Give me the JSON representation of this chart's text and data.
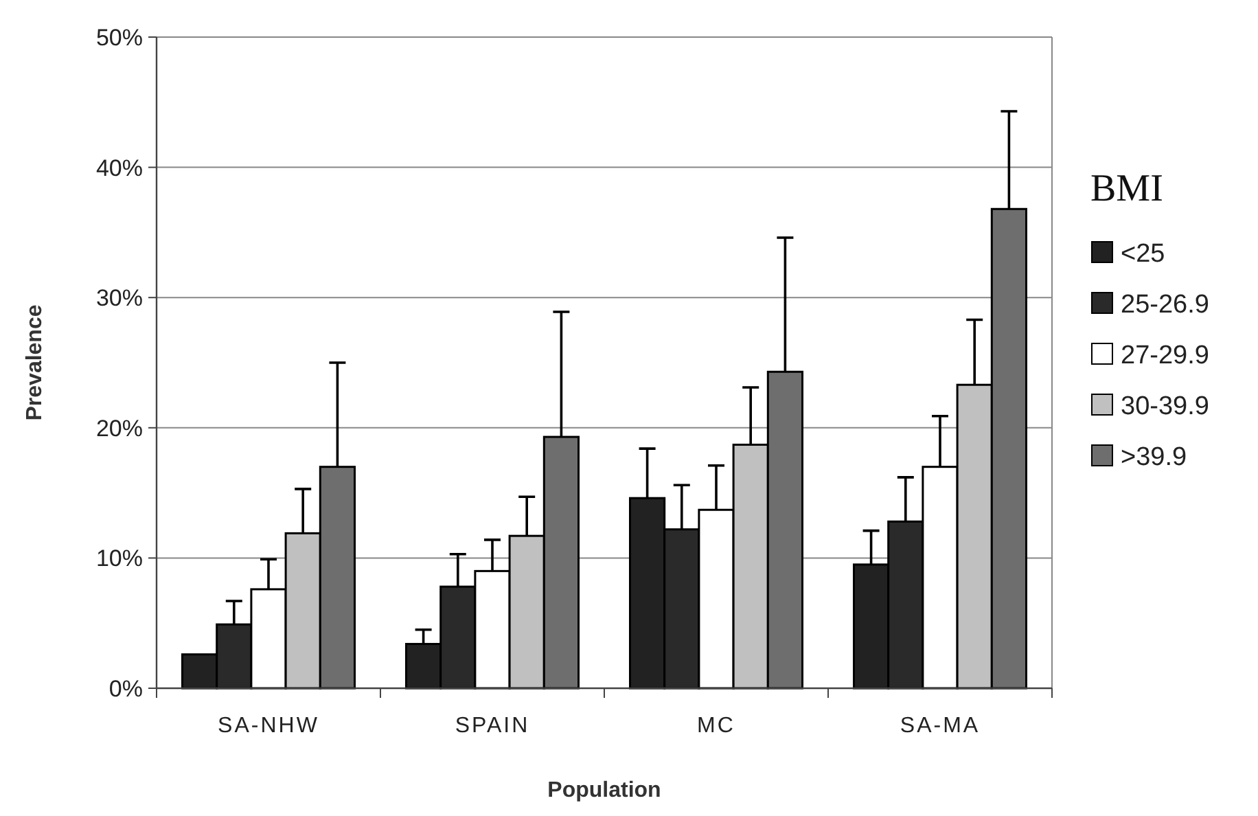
{
  "chart_data": {
    "type": "bar",
    "xlabel": "Population",
    "ylabel": "Prevalence",
    "legend_title": "BMI",
    "categories": [
      "SA-NHW",
      "SPAIN",
      "MC",
      "SA-MA"
    ],
    "series": [
      {
        "name": "<25",
        "color": "#222222",
        "values": [
          2.6,
          3.4,
          14.6,
          9.5
        ],
        "errors": [
          null,
          [
            3.4,
            4.5
          ],
          [
            14.6,
            18.4
          ],
          [
            9.5,
            12.1
          ]
        ]
      },
      {
        "name": "25-26.9",
        "color": "#2a2a2a",
        "values": [
          4.9,
          7.8,
          12.2,
          12.8
        ],
        "errors": [
          [
            4.9,
            6.7
          ],
          [
            7.8,
            10.3
          ],
          [
            12.2,
            15.6
          ],
          [
            12.8,
            16.2
          ]
        ]
      },
      {
        "name": "27-29.9",
        "color": "#ffffff",
        "values": [
          7.6,
          9.0,
          13.7,
          17.0
        ],
        "errors": [
          [
            7.6,
            9.9
          ],
          [
            9.0,
            11.4
          ],
          [
            13.7,
            17.1
          ],
          [
            17.0,
            20.9
          ]
        ]
      },
      {
        "name": "30-39.9",
        "color": "#c0c0c0",
        "values": [
          11.9,
          11.7,
          18.7,
          23.3
        ],
        "errors": [
          [
            11.9,
            15.3
          ],
          [
            11.7,
            14.7
          ],
          [
            18.7,
            23.1
          ],
          [
            23.3,
            28.3
          ]
        ]
      },
      {
        "name": ">39.9",
        "color": "#6e6e6e",
        "values": [
          17.0,
          19.3,
          24.3,
          36.8
        ],
        "errors": [
          [
            17.0,
            25.0
          ],
          [
            19.3,
            28.9
          ],
          [
            24.3,
            34.6
          ],
          [
            36.8,
            44.3
          ]
        ]
      }
    ],
    "ylim": [
      0,
      50
    ],
    "yticks": [
      {
        "value": 0,
        "label": "0%"
      },
      {
        "value": 10,
        "label": "10%"
      },
      {
        "value": 20,
        "label": "20%"
      },
      {
        "value": 30,
        "label": "30%"
      },
      {
        "value": 40,
        "label": "40%"
      },
      {
        "value": 50,
        "label": "50%"
      }
    ],
    "grid": "y",
    "legend": "right"
  }
}
